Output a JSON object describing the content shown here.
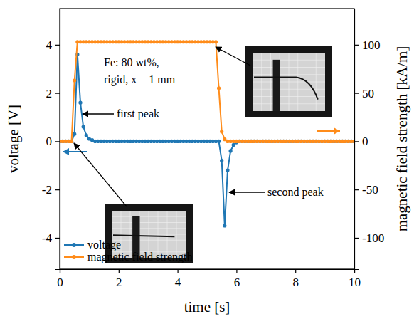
{
  "chart_data": {
    "type": "line",
    "x_label": "time [s]",
    "y_label": "voltage [V]",
    "y2_label": "magnetic field strength [kA/m]",
    "annotations": [
      "Fe: 80 wt%,",
      "rigid, x = 1 mm",
      "first peak",
      "second peak"
    ],
    "x": [
      0,
      0.1,
      0.2,
      0.3,
      0.4,
      0.5,
      0.6,
      0.7,
      0.8,
      0.9,
      1,
      1.1,
      1.2,
      1.3,
      1.4,
      1.5,
      1.6,
      1.7,
      1.8,
      1.9,
      2,
      2.1,
      2.2,
      2.3,
      2.4,
      2.5,
      2.6,
      2.7,
      2.8,
      2.9,
      3,
      3.1,
      3.2,
      3.3,
      3.4,
      3.5,
      3.6,
      3.7,
      3.8,
      3.9,
      4,
      4.1,
      4.2,
      4.3,
      4.4,
      4.5,
      4.6,
      4.7,
      4.8,
      4.9,
      5,
      5.1,
      5.2,
      5.3,
      5.4,
      5.5,
      5.6,
      5.7,
      5.8,
      5.9,
      6,
      6.1,
      6.2,
      6.3,
      6.4,
      6.5,
      6.6,
      6.7,
      6.8,
      6.9,
      7,
      7.1,
      7.2,
      7.3,
      7.4,
      7.5,
      7.6,
      7.7,
      7.8,
      7.9,
      8,
      8.1,
      8.2,
      8.3,
      8.4,
      8.5,
      8.6,
      8.7,
      8.8,
      8.9,
      9,
      9.1,
      9.2,
      9.3,
      9.4,
      9.5,
      9.6,
      9.7,
      9.8,
      9.9,
      10
    ],
    "series": [
      {
        "name": "voltage",
        "color": "#1f77b4",
        "marker": "circle",
        "line_style": "solid",
        "values": [
          0,
          0,
          0,
          0,
          0,
          0.3,
          3.6,
          1.6,
          0.6,
          0.25,
          0.1,
          0.05,
          0,
          0,
          0,
          0,
          0,
          0,
          0,
          0,
          0,
          0,
          0,
          0,
          0,
          0,
          0,
          0,
          0,
          0,
          0,
          0,
          0,
          0,
          0,
          0,
          0,
          0,
          0,
          0,
          0,
          0,
          0,
          0,
          0,
          0,
          0,
          0,
          0,
          0,
          0,
          0,
          0,
          0,
          0,
          -0.8,
          -3.5,
          -1.2,
          -0.4,
          -0.15,
          -0.05,
          0,
          0,
          0,
          0,
          0,
          0,
          0,
          0,
          0,
          0,
          0,
          0,
          0,
          0,
          0,
          0,
          0,
          0,
          0,
          0,
          0,
          0,
          0,
          0,
          0,
          0,
          0,
          0,
          0,
          0,
          0,
          0,
          0,
          0,
          0,
          0,
          0,
          0,
          0,
          0
        ]
      },
      {
        "name": "magnetic field strength",
        "color": "#ff8c1a",
        "marker": "circle",
        "line_style": "solid",
        "axis": "y2",
        "values": [
          0,
          0,
          0,
          0,
          0,
          63,
          103,
          103,
          103,
          103,
          103,
          103,
          103,
          103,
          103,
          103,
          103,
          103,
          103,
          103,
          103,
          103,
          103,
          103,
          103,
          103,
          103,
          103,
          103,
          103,
          103,
          103,
          103,
          103,
          103,
          103,
          103,
          103,
          103,
          103,
          103,
          103,
          103,
          103,
          103,
          103,
          103,
          103,
          103,
          103,
          103,
          103,
          103,
          103,
          55,
          10,
          2,
          0,
          0,
          0,
          0,
          0,
          0,
          0,
          0,
          0,
          0,
          0,
          0,
          0,
          0,
          0,
          0,
          0,
          0,
          0,
          0,
          0,
          0,
          0,
          0,
          0,
          0,
          0,
          0,
          0,
          0,
          0,
          0,
          0,
          0,
          0,
          0,
          0,
          0,
          0,
          0,
          0,
          0,
          0,
          0
        ]
      }
    ],
    "xlim": [
      0,
      10
    ],
    "xticks": [
      0,
      2,
      4,
      6,
      8,
      10
    ],
    "ylim": [
      -5.3,
      5.5
    ],
    "yticks": [
      -4,
      -2,
      0,
      2,
      4
    ],
    "y2lim": [
      -132.5,
      137.5
    ],
    "y2ticks": [
      -100,
      -50,
      0,
      50,
      100
    ],
    "grid": false,
    "legend": "lower left"
  }
}
